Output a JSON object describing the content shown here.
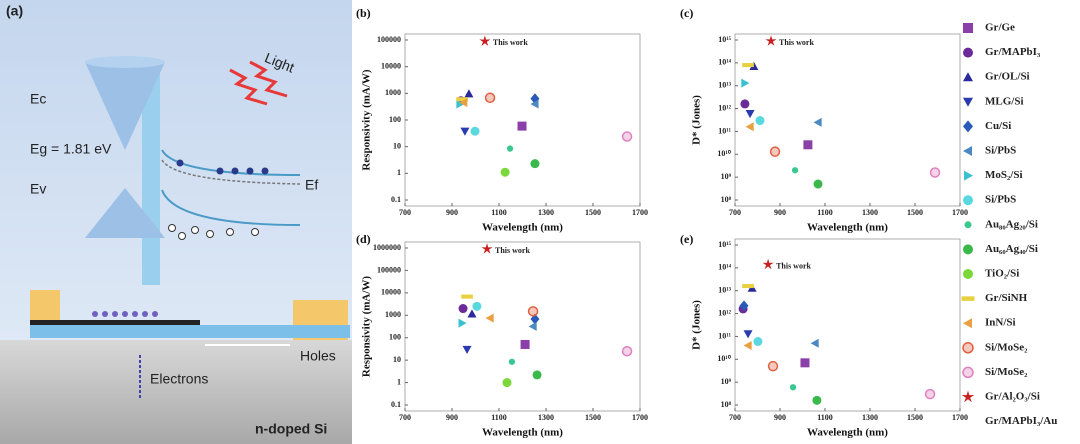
{
  "diagram": {
    "label": "(a)",
    "light": "Light",
    "ec": "Ec",
    "eg": "Eg = 1.81 eV",
    "ev": "Ev",
    "ef": "Ef",
    "holes": "Holes",
    "electrons": "Electrons",
    "substrate": "n-doped Si"
  },
  "legend": {
    "entries": [
      {
        "name": "Gr/Ge",
        "color": "#8b3fa8",
        "marker": "square"
      },
      {
        "name": "Gr/MAPbI₃",
        "color": "#6a2a9a",
        "marker": "circle"
      },
      {
        "name": "Gr/OL/Si",
        "color": "#2a2a9a",
        "marker": "up"
      },
      {
        "name": "MLG/Si",
        "color": "#2a3ab0",
        "marker": "down"
      },
      {
        "name": "Cu/Si",
        "color": "#2a5ab8",
        "marker": "diamond"
      },
      {
        "name": "Si/PbS",
        "color": "#4a8ac0",
        "marker": "left"
      },
      {
        "name": "MoS₂/Si",
        "color": "#3ac0d0",
        "marker": "right"
      },
      {
        "name": "Si/PbS",
        "color": "#5ad8e0",
        "marker": "circle"
      },
      {
        "name": "Au₈₀Ag₂₀/Si",
        "color": "#3ac890",
        "marker": "small-circle"
      },
      {
        "name": "Au₆₀Ag₄₀/Si",
        "color": "#3ab84a",
        "marker": "circle"
      },
      {
        "name": "TiO₂/Si",
        "color": "#7ad83a",
        "marker": "circle"
      },
      {
        "name": "Gr/SiNH",
        "color": "#e8d040",
        "marker": "dash"
      },
      {
        "name": "InN/Si",
        "color": "#e8a040",
        "marker": "left"
      },
      {
        "name": "Si/MoSe₂",
        "color": "#e06040",
        "marker": "ring"
      },
      {
        "name": "Si/MoSe₂",
        "color": "#e080c0",
        "marker": "ring"
      },
      {
        "name": "Gr/Al₂O₃/Si",
        "color": "#c82020",
        "marker": "star"
      },
      {
        "name": "Gr/MAPbI₃/Au",
        "color": "#444444",
        "marker": "none"
      }
    ]
  },
  "chart_data": [
    {
      "type": "scatter",
      "label": "(b)",
      "ylabel": "Responsivity (mA/W)",
      "xlabel": "Wavelength (nm)",
      "annotation": "This work",
      "log_y": true,
      "xlim": [
        700,
        1700
      ],
      "xticks": [
        700,
        900,
        1100,
        1300,
        1500,
        1700
      ],
      "ylim": [
        0.1,
        100000
      ],
      "yticks": [
        0.1,
        1,
        10,
        100,
        1000,
        10000,
        100000
      ],
      "x": [
        1198,
        938,
        972,
        955,
        1253,
        1253,
        934,
        998,
        1147,
        1253,
        1126,
        943,
        950,
        1062,
        1645,
        1040,
        null
      ],
      "y": [
        59,
        525,
        960,
        38,
        630,
        400,
        400,
        38,
        8.5,
        2.3,
        1.1,
        600,
        450,
        680,
        24,
        90000,
        null
      ]
    },
    {
      "type": "scatter",
      "label": "(c)",
      "ylabel": "D* (Jones)",
      "xlabel": "Wavelength (nm)",
      "annotation": "This work",
      "log_y": true,
      "xlim": [
        700,
        1700
      ],
      "xticks": [
        700,
        900,
        1100,
        1300,
        1500,
        1700
      ],
      "ylim": [
        100000000.0,
        1000000000000000.0
      ],
      "yticks": [
        {
          "value": 100000000.0,
          "label": "10⁸"
        },
        {
          "value": 1000000000.0,
          "label": "10⁹"
        },
        {
          "value": 10000000000.0,
          "label": "10¹⁰"
        },
        {
          "value": 100000000000.0,
          "label": "10¹¹"
        },
        {
          "value": 1000000000000.0,
          "label": "10¹²"
        },
        {
          "value": 10000000000000.0,
          "label": "10¹³"
        },
        {
          "value": 100000000000000.0,
          "label": "10¹⁴"
        },
        {
          "value": 1000000000000000.0,
          "label": "10¹⁵"
        }
      ],
      "x": [
        1024,
        744,
        784,
        767,
        null,
        1069,
        744,
        811,
        967,
        1069,
        null,
        758,
        767,
        878,
        1589,
        860,
        null
      ],
      "y": [
        26000000000.0,
        1600000000000.0,
        70000000000000.0,
        600000000000.0,
        null,
        250000000000.0,
        13000000000000.0,
        300000000000.0,
        2000000000.0,
        500000000.0,
        null,
        80000000000000.0,
        160000000000.0,
        13000000000.0,
        1600000000.0,
        900000000000000.0,
        null
      ]
    },
    {
      "type": "scatter",
      "label": "(d)",
      "ylabel": "Responsivity (mA/W)",
      "xlabel": "Wavelength (nm)",
      "annotation": "This work",
      "log_y": true,
      "xlim": [
        700,
        1700
      ],
      "xticks": [
        700,
        900,
        1100,
        1300,
        1500,
        1700
      ],
      "ylim": [
        0.1,
        1000000
      ],
      "yticks": [
        0.1,
        1,
        10,
        100,
        1000,
        10000,
        100000,
        1000000
      ],
      "x": [
        1211,
        947,
        985,
        964,
        1253,
        1245,
        943,
        1006,
        1155,
        1262,
        1134,
        964,
        1062,
        1245,
        1645,
        1049,
        null
      ],
      "y": [
        50,
        2000,
        1150,
        30,
        680,
        320,
        450,
        2500,
        8.5,
        2.2,
        1,
        6800,
        750,
        1500,
        25,
        900000,
        null
      ]
    },
    {
      "type": "scatter",
      "label": "(e)",
      "ylabel": "D* (Jones)",
      "xlabel": "Wavelength (nm)",
      "annotation": "This work",
      "log_y": true,
      "xlim": [
        700,
        1700
      ],
      "xticks": [
        700,
        900,
        1100,
        1300,
        1500,
        1700
      ],
      "ylim": [
        100000000.0,
        1000000000000000.0
      ],
      "yticks": [
        {
          "value": 100000000.0,
          "label": "10⁸"
        },
        {
          "value": 1000000000.0,
          "label": "10⁹"
        },
        {
          "value": 10000000000.0,
          "label": "10¹⁰"
        },
        {
          "value": 100000000000.0,
          "label": "10¹¹"
        },
        {
          "value": 1000000000000.0,
          "label": "10¹²"
        },
        {
          "value": 10000000000000.0,
          "label": "10¹³"
        },
        {
          "value": 100000000000000.0,
          "label": "10¹⁴"
        },
        {
          "value": 1000000000000000.0,
          "label": "10¹⁵"
        }
      ],
      "x": [
        1011,
        736,
        776,
        758,
        740,
        1056,
        null,
        802,
        958,
        1064,
        null,
        758,
        758,
        869,
        1567,
        847,
        null
      ],
      "y": [
        7000000000.0,
        1600000000000.0,
        13000000000000.0,
        130000000000.0,
        2200000000000.0,
        50000000000.0,
        null,
        60000000000.0,
        600000000.0,
        160000000.0,
        null,
        16000000000000.0,
        40000000000.0,
        5000000000.0,
        300000000.0,
        140000000000000.0,
        null
      ]
    }
  ]
}
